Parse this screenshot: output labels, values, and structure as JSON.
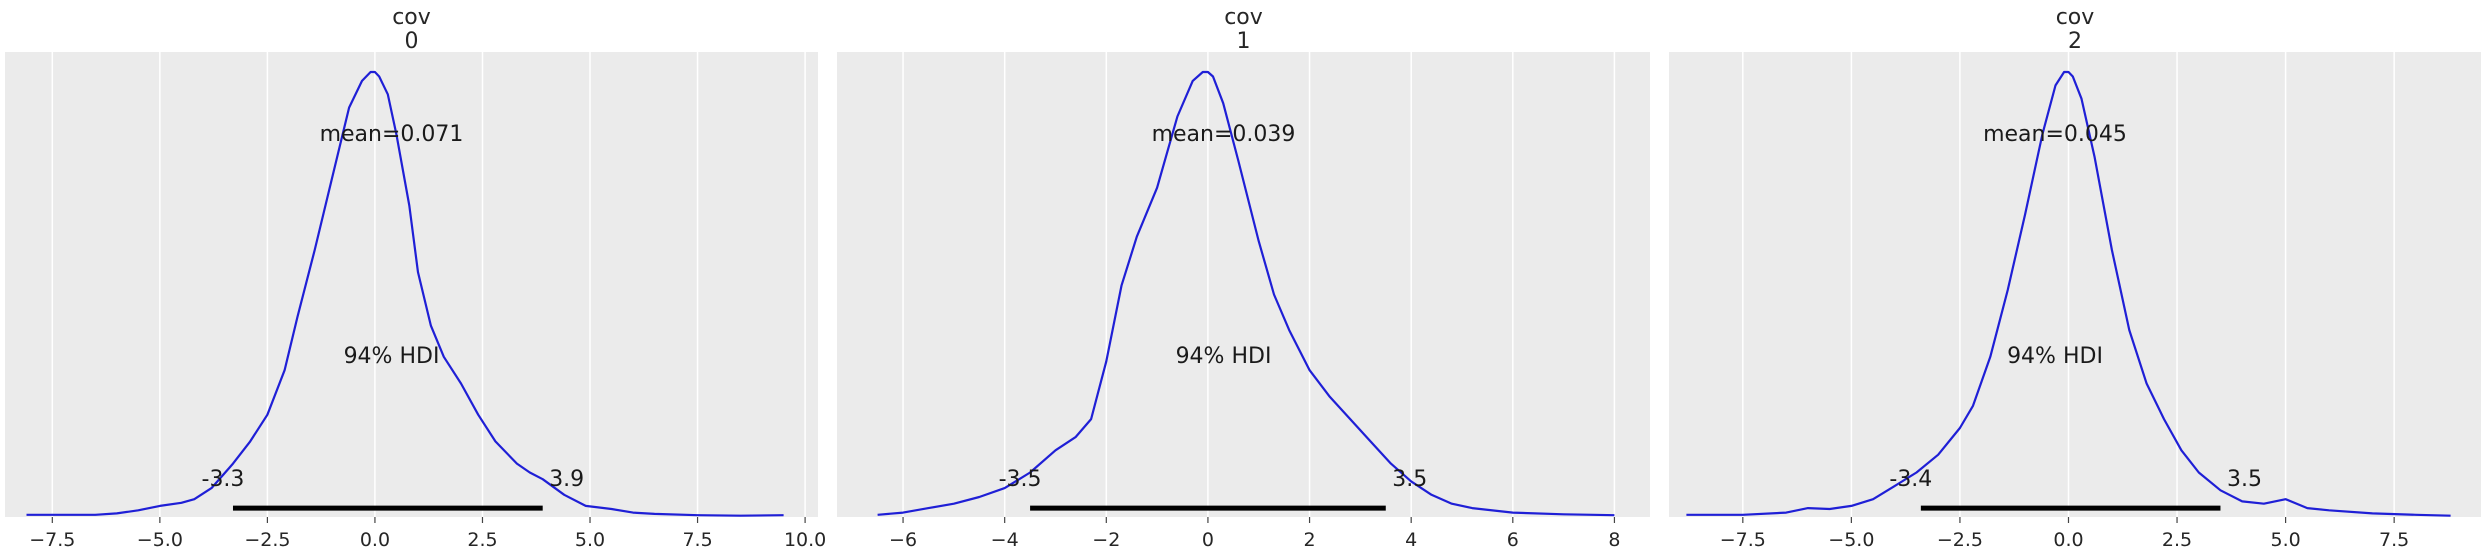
{
  "chart_data": [
    {
      "type": "line",
      "title_lines": [
        "cov",
        "0"
      ],
      "mean_label": "mean=0.071",
      "hdi_label": "94% HDI",
      "hdi_low": -3.3,
      "hdi_high": 3.9,
      "hdi_low_label": "-3.3",
      "hdi_high_label": "3.9",
      "xlim": [
        -8.6,
        10.3
      ],
      "ylim": [
        0,
        1.045
      ],
      "xticks": [
        -7.5,
        -5.0,
        -2.5,
        0.0,
        2.5,
        5.0,
        7.5,
        10.0
      ],
      "xtick_labels": [
        "−7.5",
        "−5.0",
        "−2.5",
        "0.0",
        "2.5",
        "5.0",
        "7.5",
        "10.0"
      ],
      "grid": true,
      "color": "#1f1fd6",
      "x": [
        -8.1,
        -6.5,
        -6.0,
        -5.5,
        -5.0,
        -4.5,
        -4.2,
        -3.8,
        -3.3,
        -2.9,
        -2.5,
        -2.1,
        -1.8,
        -1.4,
        -1.0,
        -0.6,
        -0.3,
        -0.1,
        0.0,
        0.1,
        0.3,
        0.5,
        0.8,
        1.0,
        1.3,
        1.6,
        2.0,
        2.4,
        2.8,
        3.3,
        3.6,
        3.9,
        4.4,
        4.9,
        5.5,
        6.0,
        6.5,
        7.5,
        8.5,
        9.5
      ],
      "y": [
        0.005,
        0.005,
        0.008,
        0.015,
        0.025,
        0.032,
        0.04,
        0.065,
        0.12,
        0.17,
        0.23,
        0.33,
        0.45,
        0.6,
        0.76,
        0.92,
        0.98,
        1.0,
        1.0,
        0.99,
        0.95,
        0.86,
        0.7,
        0.55,
        0.43,
        0.36,
        0.3,
        0.23,
        0.17,
        0.12,
        0.1,
        0.085,
        0.05,
        0.025,
        0.018,
        0.01,
        0.007,
        0.004,
        0.003,
        0.004
      ]
    },
    {
      "type": "line",
      "title_lines": [
        "cov",
        "1"
      ],
      "mean_label": "mean=0.039",
      "hdi_label": "94% HDI",
      "hdi_low": -3.5,
      "hdi_high": 3.5,
      "hdi_low_label": "-3.5",
      "hdi_high_label": "3.5",
      "xlim": [
        -7.3,
        8.7
      ],
      "ylim": [
        0,
        1.045
      ],
      "xticks": [
        -6,
        -4,
        -2,
        0,
        2,
        4,
        6,
        8
      ],
      "xtick_labels": [
        "−6",
        "−4",
        "−2",
        "0",
        "2",
        "4",
        "6",
        "8"
      ],
      "grid": true,
      "color": "#1f1fd6",
      "x": [
        -6.5,
        -6.0,
        -5.5,
        -5.0,
        -4.5,
        -4.0,
        -3.5,
        -3.0,
        -2.6,
        -2.3,
        -2.0,
        -1.7,
        -1.4,
        -1.0,
        -0.6,
        -0.3,
        -0.1,
        0.0,
        0.1,
        0.3,
        0.6,
        1.0,
        1.3,
        1.6,
        2.0,
        2.4,
        2.8,
        3.2,
        3.6,
        4.0,
        4.4,
        4.8,
        5.2,
        6.0,
        7.0,
        8.0
      ],
      "y": [
        0.005,
        0.01,
        0.02,
        0.03,
        0.045,
        0.065,
        0.1,
        0.15,
        0.18,
        0.22,
        0.35,
        0.52,
        0.63,
        0.74,
        0.9,
        0.98,
        1.0,
        1.0,
        0.99,
        0.93,
        0.8,
        0.62,
        0.5,
        0.42,
        0.33,
        0.27,
        0.22,
        0.17,
        0.12,
        0.08,
        0.05,
        0.03,
        0.02,
        0.01,
        0.006,
        0.004
      ]
    },
    {
      "type": "line",
      "title_lines": [
        "cov",
        "2"
      ],
      "mean_label": "mean=0.045",
      "hdi_label": "94% HDI",
      "hdi_low": -3.4,
      "hdi_high": 3.5,
      "hdi_low_label": "-3.4",
      "hdi_high_label": "3.5",
      "xlim": [
        -9.2,
        9.5
      ],
      "ylim": [
        0,
        1.045
      ],
      "xticks": [
        -7.5,
        -5.0,
        -2.5,
        0.0,
        2.5,
        5.0,
        7.5
      ],
      "xtick_labels": [
        "−7.5",
        "−5.0",
        "−2.5",
        "0.0",
        "2.5",
        "5.0",
        "7.5"
      ],
      "grid": true,
      "color": "#1f1fd6",
      "x": [
        -8.8,
        -7.5,
        -6.5,
        -6.0,
        -5.5,
        -5.0,
        -4.5,
        -4.0,
        -3.5,
        -3.0,
        -2.5,
        -2.2,
        -1.8,
        -1.4,
        -1.0,
        -0.6,
        -0.3,
        -0.1,
        0.0,
        0.1,
        0.3,
        0.6,
        1.0,
        1.4,
        1.8,
        2.2,
        2.6,
        3.0,
        3.5,
        4.0,
        4.5,
        5.0,
        5.5,
        6.0,
        7.0,
        8.0,
        8.8
      ],
      "y": [
        0.005,
        0.005,
        0.01,
        0.02,
        0.018,
        0.025,
        0.04,
        0.07,
        0.1,
        0.14,
        0.2,
        0.25,
        0.36,
        0.51,
        0.68,
        0.86,
        0.97,
        1.0,
        1.0,
        0.99,
        0.94,
        0.81,
        0.6,
        0.42,
        0.3,
        0.22,
        0.15,
        0.1,
        0.06,
        0.035,
        0.03,
        0.04,
        0.02,
        0.015,
        0.008,
        0.005,
        0.003
      ]
    }
  ]
}
